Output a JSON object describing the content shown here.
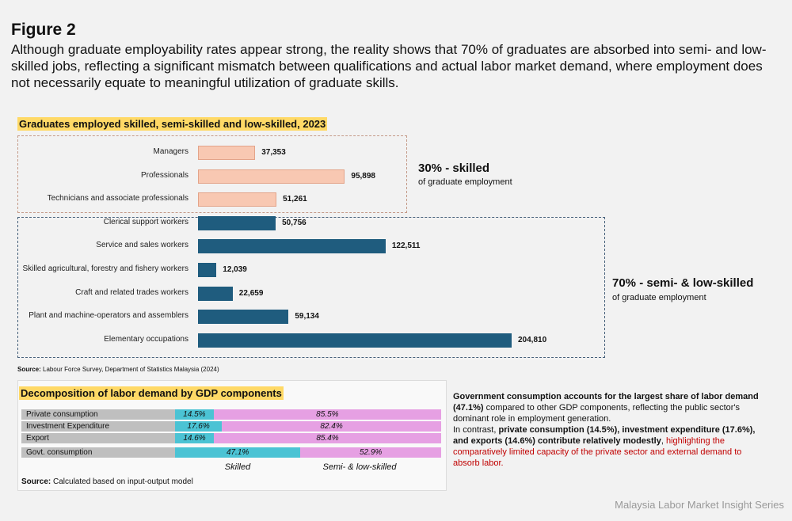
{
  "figure": {
    "label": "Figure 2",
    "description": "Although graduate employability rates appear strong, the reality shows that 70% of graduates are absorbed into semi- and low-skilled jobs, reflecting a significant mismatch between qualifications and actual labor market demand, where employment does not necessarily equate to meaningful utilization of graduate skills."
  },
  "chart_data": [
    {
      "type": "bar",
      "orientation": "horizontal",
      "title": "Graduates employed skilled, semi-skilled and low-skilled, 2023",
      "categories": [
        "Managers",
        "Professionals",
        "Technicians and associate professionals",
        "Clerical support workers",
        "Service and sales workers",
        "Skilled agricultural, forestry and fishery workers",
        "Craft and related trades workers",
        "Plant and machine-operators and assemblers",
        "Elementary occupations"
      ],
      "values": [
        37353,
        95898,
        51261,
        50756,
        122511,
        12039,
        22659,
        59134,
        204810
      ],
      "value_labels": [
        "37,353",
        "95,898",
        "51,261",
        "50,756",
        "122,511",
        "12,039",
        "22,659",
        "59,134",
        "204,810"
      ],
      "groups": [
        "skilled",
        "skilled",
        "skilled",
        "semi",
        "semi",
        "semi",
        "semi",
        "semi",
        "semi"
      ],
      "xlim": [
        0,
        210000
      ],
      "colors": {
        "skilled": "#f8c8b2",
        "skilled_border": "#e3a48a",
        "semi": "#1f5c7e"
      },
      "annotations": {
        "skilled_title": "30% - skilled",
        "skilled_sub": "of graduate employment",
        "semi_title": "70% - semi- & low-skilled",
        "semi_sub": "of graduate employment"
      },
      "source_bold": "Source:",
      "source_text": " Labour Force Survey, Department of Statistics Malaysia (2024)"
    },
    {
      "type": "bar",
      "orientation": "horizontal",
      "stacked": true,
      "title": "Decomposition of labor demand by GDP components",
      "categories": [
        "Private consumption",
        "Investment Expenditure",
        "Export",
        "Govt. consumption"
      ],
      "series": [
        {
          "name": "Skilled",
          "values": [
            14.5,
            17.6,
            14.6,
            47.1
          ],
          "labels": [
            "14.5%",
            "17.6%",
            "14.6%",
            "47.1%"
          ],
          "color": "#4bc3d4"
        },
        {
          "name": "Semi- & low-skilled",
          "values": [
            85.5,
            82.4,
            85.4,
            52.9
          ],
          "labels": [
            "85.5%",
            "82.4%",
            "85.4%",
            "52.9%"
          ],
          "color": "#e6a0e3"
        }
      ],
      "xlim": [
        0,
        100
      ],
      "source_bold": "Source:",
      "source_text": " Calculated based on input-output model"
    }
  ],
  "note": {
    "p1_bold": "Government consumption accounts for the largest share of labor demand (47.1%)",
    "p1_rest": " compared to other GDP components, reflecting the public sector's dominant role in employment generation.",
    "p2_intro": "In contrast, ",
    "p2_bold": "private consumption (14.5%), investment expenditure (17.6%), and exports (14.6%) contribute relatively modestly",
    "p2_comma": ", ",
    "p2_red": "highlighting the comparatively limited capacity of the private sector and external demand to absorb labor."
  },
  "footer": {
    "series": "Malaysia Labor Market Insight Series"
  }
}
